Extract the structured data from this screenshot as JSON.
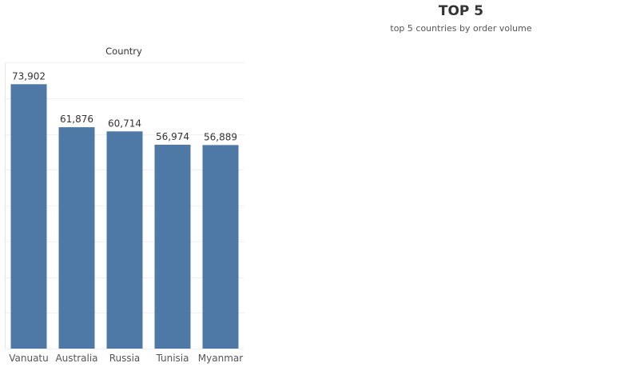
{
  "title": "TOP 5",
  "subtitle": "top 5 countries by order volume",
  "chart_data": {
    "type": "bar",
    "header": "Country",
    "categories": [
      "Vanuatu",
      "Australia",
      "Russia",
      "Tunisia",
      "Myanmar"
    ],
    "values": [
      73902,
      61876,
      60714,
      56974,
      56889
    ],
    "value_labels": [
      "73,902",
      "61,876",
      "60,714",
      "56,974",
      "56,889"
    ],
    "ylim": [
      0,
      80000
    ],
    "grid": true,
    "bar_color": "#4e79a7"
  }
}
